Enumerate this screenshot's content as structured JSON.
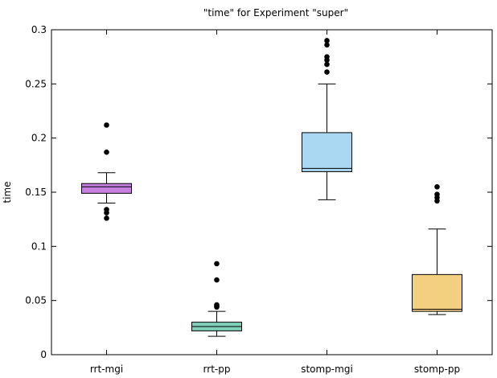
{
  "chart_data": {
    "type": "box",
    "title": "\"time\" for Experiment \"super\"",
    "xlabel": "",
    "ylabel": "time",
    "ylim": [
      0,
      0.3
    ],
    "yticks": [
      0,
      0.05,
      0.1,
      0.15,
      0.2,
      0.25,
      0.3
    ],
    "ytick_labels": [
      "0",
      "0.05",
      "0.1",
      "0.15",
      "0.2",
      "0.25",
      "0.3"
    ],
    "grid": false,
    "categories": [
      "rrt-mgi",
      "rrt-pp",
      "stomp-mgi",
      "stomp-pp"
    ],
    "boxes": [
      {
        "name": "rrt-mgi",
        "color": "#c77fe0",
        "whisker_low": 0.14,
        "q1": 0.149,
        "median": 0.155,
        "q3": 0.158,
        "whisker_high": 0.168,
        "outliers": [
          0.212,
          0.187,
          0.134,
          0.131,
          0.126
        ]
      },
      {
        "name": "rrt-pp",
        "color": "#7fd0b8",
        "whisker_low": 0.017,
        "q1": 0.022,
        "median": 0.026,
        "q3": 0.03,
        "whisker_high": 0.04,
        "outliers": [
          0.084,
          0.069,
          0.046,
          0.045,
          0.044
        ]
      },
      {
        "name": "stomp-mgi",
        "color": "#aad8f2",
        "whisker_low": 0.143,
        "q1": 0.169,
        "median": 0.172,
        "q3": 0.205,
        "whisker_high": 0.25,
        "outliers": [
          0.29,
          0.286,
          0.275,
          0.272,
          0.268,
          0.261
        ]
      },
      {
        "name": "stomp-pp",
        "color": "#f2d080",
        "whisker_low": 0.037,
        "q1": 0.04,
        "median": 0.042,
        "q3": 0.074,
        "whisker_high": 0.116,
        "outliers": [
          0.155,
          0.148,
          0.145,
          0.142
        ]
      }
    ]
  }
}
